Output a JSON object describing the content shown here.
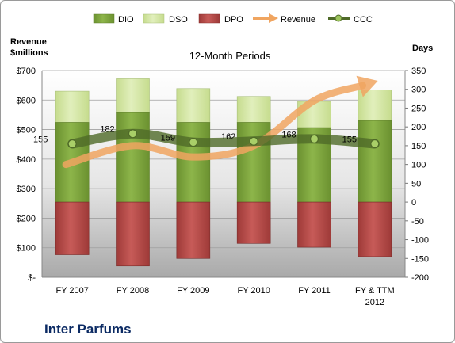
{
  "chart_data": {
    "type": "bar",
    "title": "12-Month Periods",
    "company": "Inter Parfums",
    "left_axis": {
      "label_line1": "Revenue",
      "label_line2": "$millions",
      "min": 0,
      "max": 700,
      "ticks": [
        "$-",
        "$100",
        "$200",
        "$300",
        "$400",
        "$500",
        "$600",
        "$700"
      ]
    },
    "right_axis": {
      "label": "Days",
      "min": -200,
      "max": 350,
      "ticks": [
        "-200",
        "-150",
        "-100",
        "-50",
        "0",
        "50",
        "100",
        "150",
        "200",
        "250",
        "300",
        "350"
      ]
    },
    "categories": [
      {
        "line1": "FY 2007",
        "line2": ""
      },
      {
        "line1": "FY 2008",
        "line2": ""
      },
      {
        "line1": "FY 2009",
        "line2": ""
      },
      {
        "line1": "FY 2010",
        "line2": ""
      },
      {
        "line1": "FY 2011",
        "line2": ""
      },
      {
        "line1": "FY & TTM",
        "line2": "2012"
      }
    ],
    "series": [
      {
        "name": "DIO",
        "color": "#7ea53c",
        "values": [
          212,
          238,
          212,
          212,
          198,
          217
        ]
      },
      {
        "name": "DSO",
        "color": "#d4e6a4",
        "values": [
          83,
          90,
          90,
          69,
          70,
          81
        ]
      },
      {
        "name": "DPO",
        "color": "#b84a48",
        "values": [
          -140,
          -170,
          -150,
          -110,
          -120,
          -145
        ]
      },
      {
        "name": "Revenue",
        "color": "#f0a560",
        "values": [
          100,
          150,
          120,
          150,
          270,
          320
        ]
      },
      {
        "name": "CCC",
        "color": "#4f6a28",
        "values": [
          155,
          182,
          159,
          162,
          168,
          155
        ]
      }
    ],
    "ccc_labels": [
      "155",
      "182",
      "159",
      "162",
      "168",
      "155"
    ],
    "grid": true,
    "legend_position": "top"
  }
}
